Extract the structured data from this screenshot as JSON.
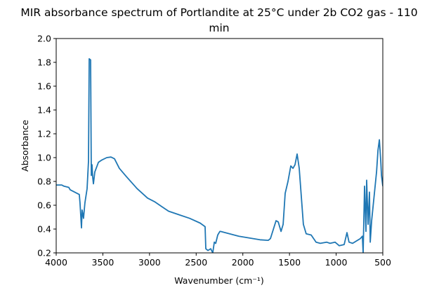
{
  "chart_data": {
    "type": "line",
    "title": "MIR absorbance spectrum of Portlandite at 25°C under 2b CO2 gas - 110 min",
    "title_lines": [
      "MIR absorbance spectrum of Portlandite at 25°C under 2b CO2 gas - 110",
      "min"
    ],
    "xlabel": "Wavenumber (cm⁻¹)",
    "ylabel": "Absorbance",
    "xlim": [
      4000,
      500
    ],
    "ylim": [
      0.2,
      2.0
    ],
    "x_reversed": true,
    "grid": false,
    "color": "#1f77b4",
    "xticks": [
      "4000",
      "3500",
      "3000",
      "2500",
      "2000",
      "1500",
      "1000",
      "500"
    ],
    "yticks": [
      "0.2",
      "0.4",
      "0.6",
      "0.8",
      "1.0",
      "1.2",
      "1.4",
      "1.6",
      "1.8",
      "2.0"
    ],
    "series": [
      {
        "x": [
          4000,
          3940,
          3917,
          3865,
          3850,
          3752,
          3745,
          3729,
          3722,
          3707,
          3692,
          3669,
          3654,
          3646,
          3631,
          3624,
          3616,
          3609,
          3601,
          3586,
          3548,
          3511,
          3458,
          3413,
          3375,
          3323,
          3247,
          3134,
          3021,
          2946,
          2871,
          2796,
          2683,
          2570,
          2457,
          2404,
          2397,
          2374,
          2344,
          2322,
          2306,
          2291,
          2269,
          2246,
          2239,
          2043,
          1817,
          1727,
          1704,
          1644,
          1621,
          1591,
          1568,
          1546,
          1516,
          1486,
          1463,
          1441,
          1418,
          1396,
          1351,
          1321,
          1268,
          1215,
          1170,
          1102,
          1065,
          1012,
          967,
          914,
          884,
          862,
          824,
          741,
          719,
          711,
          696,
          681,
          673,
          658,
          643,
          635,
          620,
          567,
          552,
          537,
          522,
          514,
          500
        ],
        "y": [
          0.77,
          0.77,
          0.76,
          0.75,
          0.73,
          0.69,
          0.62,
          0.41,
          0.56,
          0.49,
          0.62,
          0.74,
          0.97,
          1.83,
          1.82,
          0.85,
          0.94,
          0.84,
          0.78,
          0.88,
          0.96,
          0.98,
          1.0,
          1.005,
          0.99,
          0.91,
          0.84,
          0.74,
          0.66,
          0.63,
          0.59,
          0.55,
          0.52,
          0.49,
          0.45,
          0.42,
          0.235,
          0.22,
          0.235,
          0.2,
          0.29,
          0.28,
          0.35,
          0.38,
          0.38,
          0.34,
          0.31,
          0.305,
          0.32,
          0.47,
          0.46,
          0.38,
          0.44,
          0.7,
          0.8,
          0.93,
          0.91,
          0.94,
          1.03,
          0.91,
          0.44,
          0.36,
          0.35,
          0.29,
          0.28,
          0.29,
          0.28,
          0.29,
          0.26,
          0.27,
          0.37,
          0.29,
          0.28,
          0.32,
          0.34,
          0.2,
          0.76,
          0.38,
          0.81,
          0.44,
          0.71,
          0.29,
          0.47,
          0.88,
          1.06,
          1.15,
          0.97,
          0.85,
          0.76
        ]
      }
    ]
  }
}
